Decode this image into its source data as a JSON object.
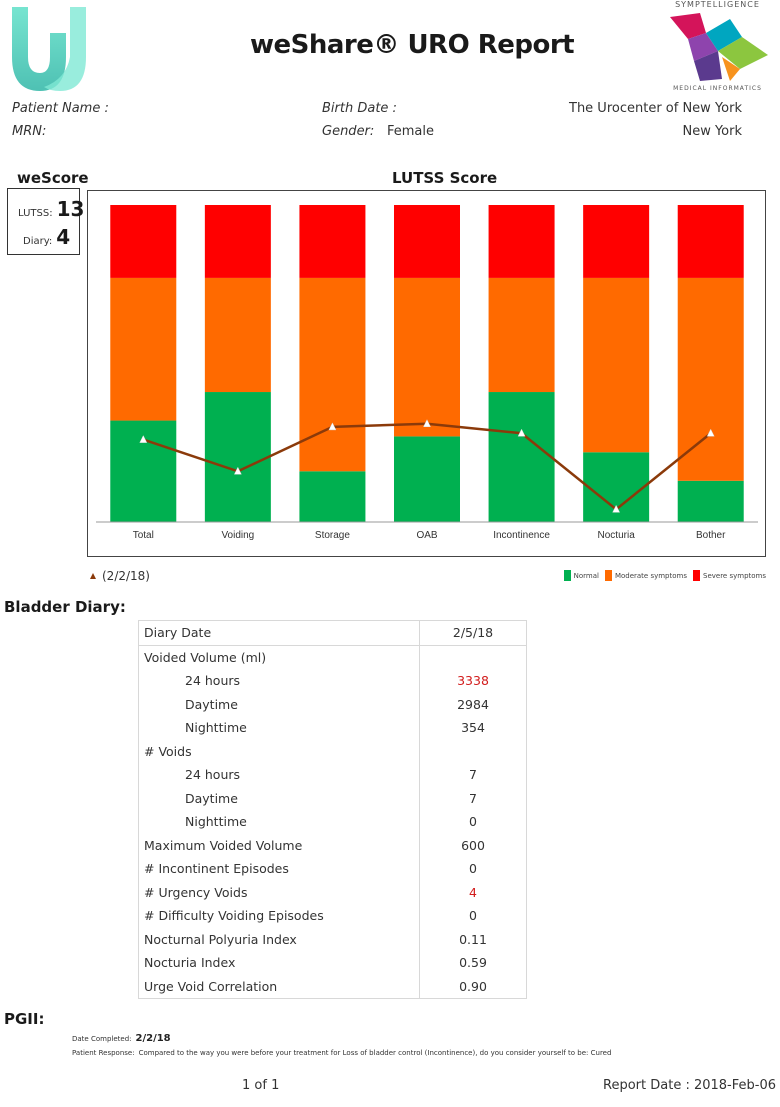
{
  "header": {
    "title": "weShare® URO Report",
    "company_logo_top": "SYMPTELLIGENCE",
    "company_logo_bottom": "MEDICAL INFORMATICS"
  },
  "patient": {
    "name_label": "Patient Name :",
    "mrn_label": "MRN:",
    "birth_label": "Birth Date :",
    "gender_label": "Gender:",
    "gender_value": "Female",
    "center_name": "The Urocenter of New York",
    "center_city": "New York"
  },
  "wescore": {
    "heading": "weScore",
    "lutss_label": "LUTSS:",
    "lutss_value": "13",
    "diary_label": "Diary:",
    "diary_value": "4"
  },
  "chart_data": {
    "type": "bar",
    "title": "LUTSS Score",
    "categories": [
      "Total",
      "Voiding",
      "Storage",
      "OAB",
      "Incontinence",
      "Nocturia",
      "Bother"
    ],
    "series": [
      {
        "name": "Normal",
        "color": "#00b050",
        "values": [
          32,
          41,
          16,
          27,
          41,
          22,
          13
        ]
      },
      {
        "name": "Moderate symptoms",
        "color": "#ff6a00",
        "values": [
          45,
          36,
          61,
          50,
          36,
          55,
          64
        ]
      },
      {
        "name": "Severe symptoms",
        "color": "#ff0000",
        "values": [
          23,
          23,
          23,
          23,
          23,
          23,
          23
        ]
      }
    ],
    "line": {
      "name": "(2/2/18)",
      "color": "#8b3a0a",
      "values": [
        26,
        16,
        30,
        31,
        28,
        4,
        28
      ]
    },
    "ylim": [
      0,
      100
    ],
    "legend": "bottom-right"
  },
  "bladder_diary": {
    "heading": "Bladder Diary:",
    "date_header": "Diary Date",
    "date_value": "2/5/18",
    "rows": [
      {
        "label": "Voided Volume (ml)",
        "value": "",
        "indent": false,
        "highlight": false
      },
      {
        "label": "24 hours",
        "value": "3338",
        "indent": true,
        "highlight": true
      },
      {
        "label": "Daytime",
        "value": "2984",
        "indent": true,
        "highlight": false
      },
      {
        "label": "Nighttime",
        "value": "354",
        "indent": true,
        "highlight": false
      },
      {
        "label": "# Voids",
        "value": "",
        "indent": false,
        "highlight": false
      },
      {
        "label": "24 hours",
        "value": "7",
        "indent": true,
        "highlight": false
      },
      {
        "label": "Daytime",
        "value": "7",
        "indent": true,
        "highlight": false
      },
      {
        "label": "Nighttime",
        "value": "0",
        "indent": true,
        "highlight": false
      },
      {
        "label": "Maximum Voided Volume",
        "value": "600",
        "indent": false,
        "highlight": false
      },
      {
        "label": "# Incontinent Episodes",
        "value": "0",
        "indent": false,
        "highlight": false
      },
      {
        "label": "# Urgency Voids",
        "value": "4",
        "indent": false,
        "highlight": true
      },
      {
        "label": "# Difficulty Voiding Episodes",
        "value": "0",
        "indent": false,
        "highlight": false
      },
      {
        "label": "Nocturnal Polyuria Index",
        "value": "0.11",
        "indent": false,
        "highlight": false
      },
      {
        "label": "Nocturia Index",
        "value": "0.59",
        "indent": false,
        "highlight": false
      },
      {
        "label": "Urge Void Correlation",
        "value": "0.90",
        "indent": false,
        "highlight": false
      }
    ]
  },
  "pgii": {
    "heading": "PGII:",
    "date_label": "Date Completed:",
    "date_value": "2/2/18",
    "response_label": "Patient Response:",
    "response_text": "Compared to the way you were before your treatment for Loss of bladder control (Incontinence), do you consider yourself to be: Cured"
  },
  "footer": {
    "page": "1 of 1",
    "report_date": "Report Date : 2018-Feb-06"
  }
}
